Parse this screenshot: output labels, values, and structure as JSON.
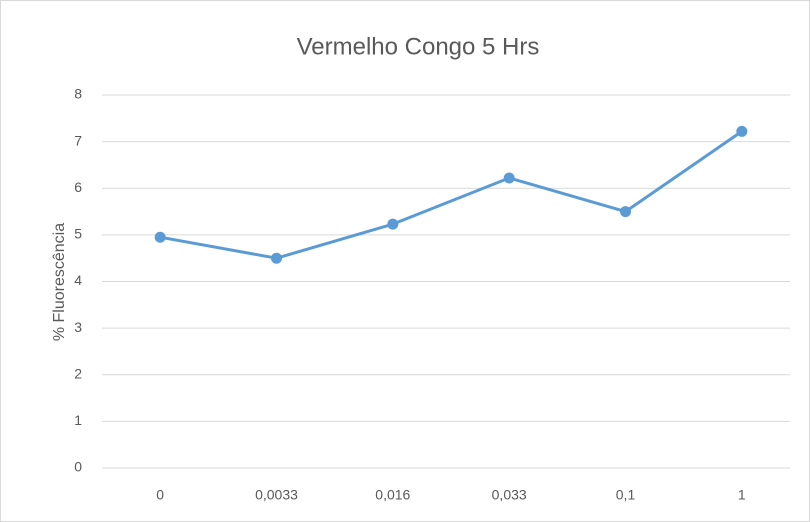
{
  "chart_data": {
    "type": "line",
    "title": "Vermelho Congo 5 Hrs",
    "y_label": "% Fluorescência",
    "categories": [
      "0",
      "0,0033",
      "0,016",
      "0,033",
      "0,1",
      "1"
    ],
    "values": [
      4.95,
      4.5,
      5.23,
      6.22,
      5.5,
      7.22
    ],
    "color": "#5b9bd5",
    "ylim": [
      0,
      8
    ],
    "yticks": [
      0,
      1,
      2,
      3,
      4,
      5,
      6,
      7,
      8
    ],
    "grid": true
  }
}
